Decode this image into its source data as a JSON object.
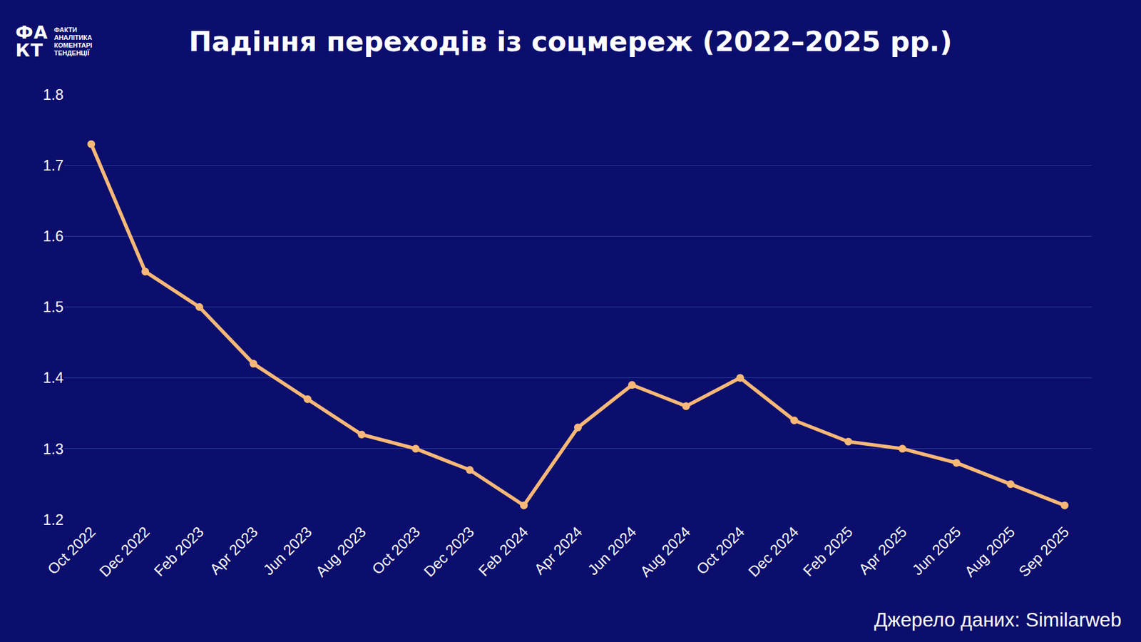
{
  "chart_data": {
    "type": "line",
    "title": "Падіння переходів із соцмереж (2022–2025 рр.)",
    "categories": [
      "Oct 2022",
      "Dec 2022",
      "Feb 2023",
      "Apr 2023",
      "Jun 2023",
      "Aug 2023",
      "Oct 2023",
      "Dec 2023",
      "Feb 2024",
      "Apr 2024",
      "Jun 2024",
      "Aug 2024",
      "Oct 2024",
      "Dec 2024",
      "Feb 2025",
      "Apr 2025",
      "Jun 2025",
      "Aug 2025",
      "Sep 2025"
    ],
    "values": [
      1.73,
      1.55,
      1.5,
      1.42,
      1.37,
      1.32,
      1.3,
      1.27,
      1.22,
      1.33,
      1.39,
      1.36,
      1.4,
      1.34,
      1.31,
      1.3,
      1.28,
      1.25,
      1.22
    ],
    "color": "#f7b877",
    "marker": "circle",
    "ylim": [
      1.2,
      1.8
    ],
    "yticks": [
      1.2,
      1.3,
      1.4,
      1.5,
      1.6,
      1.7,
      1.8
    ],
    "grid": true,
    "annotations": [
      "Джерело даних: Similarweb"
    ],
    "logo": {
      "mark": [
        "ФА",
        "КТ"
      ],
      "lines": [
        "ФАКТИ",
        "АНАЛІТИКА",
        "КОМЕНТАРІ",
        "ТЕНДЕНЦІЇ"
      ]
    }
  }
}
